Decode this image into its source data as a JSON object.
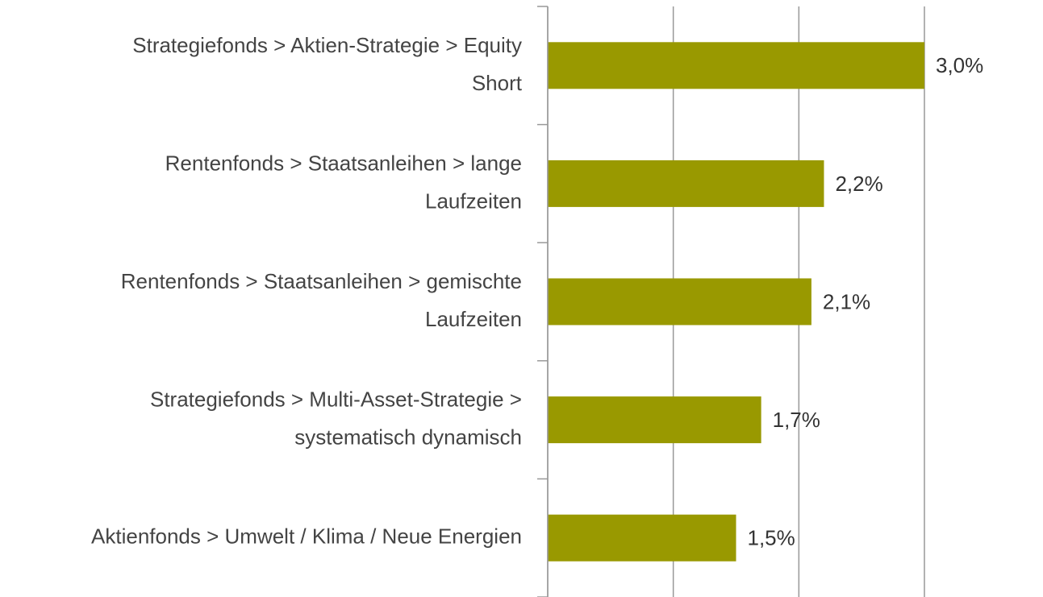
{
  "chart_data": {
    "type": "barh",
    "categories": [
      "Strategiefonds > Aktien-Strategie > Equity\nShort",
      "Rentenfonds > Staatsanleihen > lange\nLaufzeiten",
      "Rentenfonds > Staatsanleihen > gemischte\nLaufzeiten",
      "Strategiefonds > Multi-Asset-Strategie >\nsystematisch dynamisch",
      "Aktienfonds > Umwelt / Klima / Neue Energien"
    ],
    "values": [
      3.0,
      2.2,
      2.1,
      1.7,
      1.5
    ],
    "value_labels": [
      "3,0%",
      "2,2%",
      "2,1%",
      "1,7%",
      "1,5%"
    ],
    "color": "#999900",
    "xlim": [
      0,
      3
    ],
    "xticks": [
      0,
      1,
      2,
      3
    ],
    "grid": true
  }
}
